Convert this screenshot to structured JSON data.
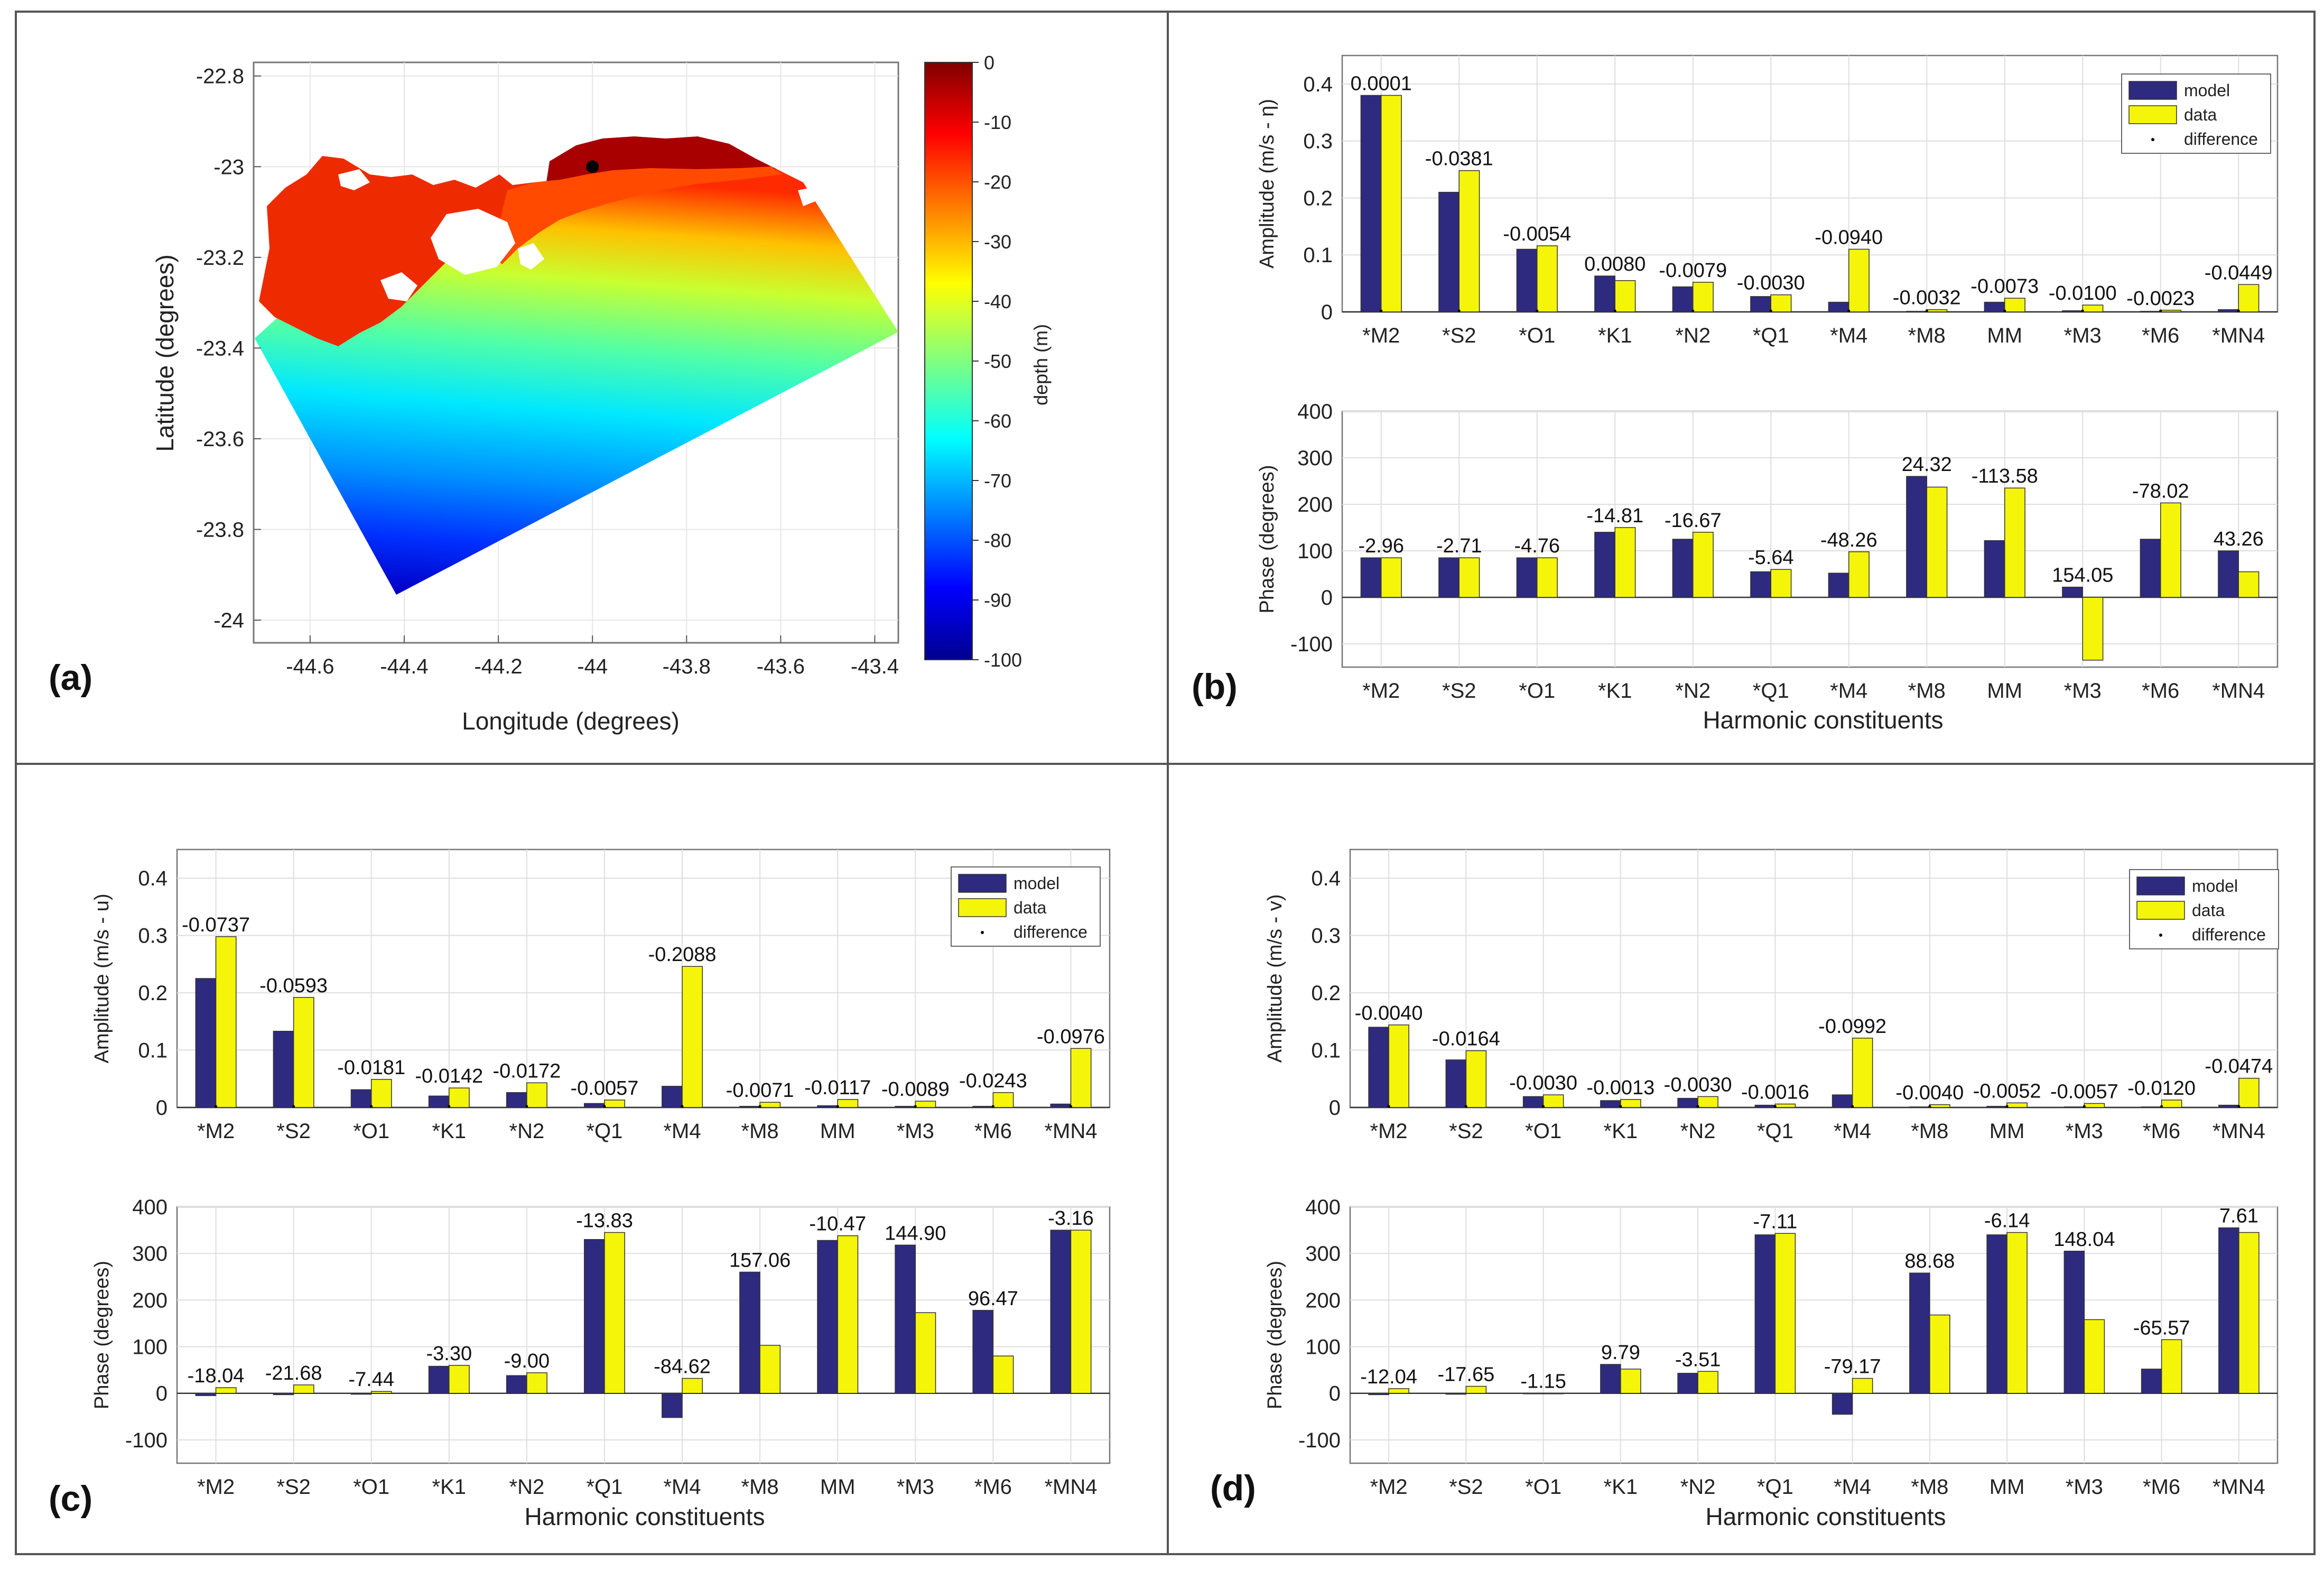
{
  "panel_labels": {
    "a": "(a)",
    "b": "(b)",
    "c": "(c)",
    "d": "(d)"
  },
  "colors": {
    "model": "#2e2a7f",
    "data": "#f5f50a",
    "grid": "#dedede",
    "axis": "#555555",
    "text": "#222222",
    "frame": "#555555",
    "marker": "#000000"
  },
  "legend": {
    "model": "model",
    "data": "data",
    "difference": "difference"
  },
  "constituents": [
    "*M2",
    "*S2",
    "*O1",
    "*K1",
    "*N2",
    "*Q1",
    "*M4",
    "*M8",
    "MM",
    "*M3",
    "*M6",
    "*MN4"
  ],
  "xlabel": "Harmonic constituents",
  "map": {
    "title": "",
    "xlabel": "Longitude (degrees)",
    "ylabel": "Latitude (degrees)",
    "xticks": [
      "-44.6",
      "-44.4",
      "-44.2",
      "-44",
      "-43.8",
      "-43.6",
      "-43.4"
    ],
    "yticks": [
      "-22.8",
      "-23",
      "-23.2",
      "-23.4",
      "-23.6",
      "-23.8",
      "-24"
    ],
    "xlim": [
      -44.72,
      -43.35
    ],
    "ylim": [
      -24.05,
      -22.77
    ],
    "colorbar_label": "depth (m)",
    "colorbar_ticks": [
      "0",
      "-10",
      "-20",
      "-30",
      "-40",
      "-50",
      "-60",
      "-70",
      "-80",
      "-90",
      "-100"
    ],
    "colorbar_range": [
      -100,
      0
    ],
    "station": {
      "lon": -44.0,
      "lat": -23.0
    }
  },
  "chart_data": [
    {
      "panel": "b-amplitude",
      "type": "bar",
      "title": "",
      "categories": [
        "*M2",
        "*S2",
        "*O1",
        "*K1",
        "*N2",
        "*Q1",
        "*M4",
        "*M8",
        "MM",
        "*M3",
        "*M6",
        "*MN4"
      ],
      "series": [
        {
          "name": "model",
          "values": [
            0.38,
            0.21,
            0.11,
            0.063,
            0.044,
            0.027,
            0.017,
            0.001,
            0.017,
            0.002,
            0.001,
            0.004
          ]
        },
        {
          "name": "data",
          "values": [
            0.38,
            0.248,
            0.116,
            0.055,
            0.052,
            0.03,
            0.11,
            0.004,
            0.024,
            0.012,
            0.003,
            0.048
          ]
        }
      ],
      "labels": [
        "0.0001",
        "-0.0381",
        "-0.0054",
        "0.0080",
        "-0.0079",
        "-0.0030",
        "-0.0940",
        "-0.0032",
        "-0.0073",
        "-0.0100",
        "-0.0023",
        "-0.0449"
      ],
      "ylabel": "Amplitude (m/s - η)",
      "ylim": [
        0,
        0.45
      ],
      "yticks": [
        0,
        0.1,
        0.2,
        0.3,
        0.4
      ],
      "ytick_labels": [
        "0",
        "0.1",
        "0.2",
        "0.3",
        "0.4"
      ],
      "legend": true
    },
    {
      "panel": "b-phase",
      "type": "bar",
      "title": "",
      "categories": [
        "*M2",
        "*S2",
        "*O1",
        "*K1",
        "*N2",
        "*Q1",
        "*M4",
        "*M8",
        "MM",
        "*M3",
        "*M6",
        "*MN4"
      ],
      "series": [
        {
          "name": "model",
          "values": [
            85,
            85,
            85,
            140,
            125,
            55,
            52,
            260,
            122,
            22,
            125,
            100
          ]
        },
        {
          "name": "data",
          "values": [
            85,
            85,
            85,
            150,
            140,
            60,
            98,
            237,
            235,
            -135,
            203,
            55
          ]
        }
      ],
      "labels": [
        "-2.96",
        "-2.71",
        "-4.76",
        "-14.81",
        "-16.67",
        "-5.64",
        "-48.26",
        "24.32",
        "-113.58",
        "154.05",
        "-78.02",
        "43.26"
      ],
      "ylabel": "Phase (degrees)",
      "ylim": [
        -150,
        400
      ],
      "yticks": [
        -100,
        0,
        100,
        200,
        300,
        400
      ],
      "ytick_labels": [
        "-100",
        "0",
        "100",
        "200",
        "300",
        "400"
      ],
      "xlabel": "Harmonic constituents"
    },
    {
      "panel": "c-amplitude",
      "type": "bar",
      "title": "",
      "categories": [
        "*M2",
        "*S2",
        "*O1",
        "*K1",
        "*N2",
        "*Q1",
        "*M4",
        "*M8",
        "MM",
        "*M3",
        "*M6",
        "*MN4"
      ],
      "series": [
        {
          "name": "model",
          "values": [
            0.225,
            0.133,
            0.031,
            0.02,
            0.026,
            0.007,
            0.037,
            0.002,
            0.003,
            0.002,
            0.002,
            0.006
          ]
        },
        {
          "name": "data",
          "values": [
            0.298,
            0.192,
            0.049,
            0.034,
            0.043,
            0.013,
            0.246,
            0.009,
            0.014,
            0.011,
            0.026,
            0.103
          ]
        }
      ],
      "labels": [
        "-0.0737",
        "-0.0593",
        "-0.0181",
        "-0.0142",
        "-0.0172",
        "-0.0057",
        "-0.2088",
        "-0.0071",
        "-0.0117",
        "-0.0089",
        "-0.0243",
        "-0.0976"
      ],
      "ylabel": "Amplitude (m/s - u)",
      "ylim": [
        0,
        0.45
      ],
      "yticks": [
        0,
        0.1,
        0.2,
        0.3,
        0.4
      ],
      "ytick_labels": [
        "0",
        "0.1",
        "0.2",
        "0.3",
        "0.4"
      ],
      "legend": true
    },
    {
      "panel": "c-phase",
      "type": "bar",
      "title": "",
      "categories": [
        "*M2",
        "*S2",
        "*O1",
        "*K1",
        "*N2",
        "*Q1",
        "*M4",
        "*M8",
        "MM",
        "*M3",
        "*M6",
        "*MN4"
      ],
      "series": [
        {
          "name": "model",
          "values": [
            -5,
            -3,
            -2,
            58,
            38,
            330,
            -52,
            260,
            328,
            318,
            178,
            350
          ]
        },
        {
          "name": "data",
          "values": [
            12,
            18,
            4,
            60,
            44,
            345,
            32,
            103,
            338,
            173,
            80,
            350
          ]
        }
      ],
      "labels": [
        "-18.04",
        "-21.68",
        "-7.44",
        "-3.30",
        "-9.00",
        "-13.83",
        "-84.62",
        "157.06",
        "-10.47",
        "144.90",
        "96.47",
        "-3.16"
      ],
      "ylabel": "Phase (degrees)",
      "ylim": [
        -150,
        400
      ],
      "yticks": [
        -100,
        0,
        100,
        200,
        300,
        400
      ],
      "ytick_labels": [
        "-100",
        "0",
        "100",
        "200",
        "300",
        "400"
      ],
      "xlabel": "Harmonic constituents"
    },
    {
      "panel": "d-amplitude",
      "type": "bar",
      "title": "",
      "categories": [
        "*M2",
        "*S2",
        "*O1",
        "*K1",
        "*N2",
        "*Q1",
        "*M4",
        "*M8",
        "MM",
        "*M3",
        "*M6",
        "*MN4"
      ],
      "series": [
        {
          "name": "model",
          "values": [
            0.14,
            0.083,
            0.019,
            0.012,
            0.016,
            0.004,
            0.022,
            0.001,
            0.002,
            0.001,
            0.001,
            0.004
          ]
        },
        {
          "name": "data",
          "values": [
            0.144,
            0.099,
            0.022,
            0.014,
            0.019,
            0.006,
            0.121,
            0.005,
            0.008,
            0.007,
            0.013,
            0.051
          ]
        }
      ],
      "labels": [
        "-0.0040",
        "-0.0164",
        "-0.0030",
        "-0.0013",
        "-0.0030",
        "-0.0016",
        "-0.0992",
        "-0.0040",
        "-0.0052",
        "-0.0057",
        "-0.0120",
        "-0.0474"
      ],
      "ylabel": "Amplitude (m/s - v)",
      "ylim": [
        0,
        0.45
      ],
      "yticks": [
        0,
        0.1,
        0.2,
        0.3,
        0.4
      ],
      "ytick_labels": [
        "0",
        "0.1",
        "0.2",
        "0.3",
        "0.4"
      ],
      "legend": true
    },
    {
      "panel": "d-phase",
      "type": "bar",
      "title": "",
      "categories": [
        "*M2",
        "*S2",
        "*O1",
        "*K1",
        "*N2",
        "*Q1",
        "*M4",
        "*M8",
        "MM",
        "*M3",
        "*M6",
        "*MN4"
      ],
      "series": [
        {
          "name": "model",
          "values": [
            -3,
            -2,
            0,
            62,
            43,
            340,
            -45,
            258,
            340,
            305,
            52,
            355
          ]
        },
        {
          "name": "data",
          "values": [
            10,
            15,
            0,
            52,
            47,
            343,
            32,
            168,
            345,
            158,
            115,
            345
          ]
        }
      ],
      "labels": [
        "-12.04",
        "-17.65",
        "-1.15",
        "9.79",
        "-3.51",
        "-7.11",
        "-79.17",
        "88.68",
        "-6.14",
        "148.04",
        "-65.57",
        "7.61"
      ],
      "ylabel": "Phase (degrees)",
      "ylim": [
        -150,
        400
      ],
      "yticks": [
        -100,
        0,
        100,
        200,
        300,
        400
      ],
      "ytick_labels": [
        "-100",
        "0",
        "100",
        "200",
        "300",
        "400"
      ],
      "xlabel": "Harmonic constituents"
    }
  ]
}
